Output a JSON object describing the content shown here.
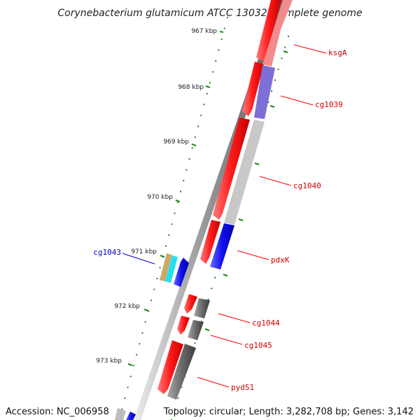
{
  "title": "Corynebacterium glutamicum ATCC 13032, complete genome",
  "ticks": [
    {
      "label": "967 kbp"
    },
    {
      "label": "968 kbp"
    },
    {
      "label": "969 kbp"
    },
    {
      "label": "970 kbp"
    },
    {
      "label": "971 kbp"
    },
    {
      "label": "972 kbp"
    },
    {
      "label": "973 kbp"
    }
  ],
  "genes": [
    {
      "label": "ksgA",
      "label_color": "#d40000",
      "track_color": "#f28b8b"
    },
    {
      "label": "cg1039",
      "label_color": "#d40000",
      "track_color": "#7d6fd6"
    },
    {
      "label": "cg1040",
      "label_color": "#d40000",
      "track_color": "#c8c8c8"
    },
    {
      "label": "pdxK",
      "label_color": "#d40000",
      "track_color": "#1a1aee"
    },
    {
      "label": "cg1043",
      "label_color": "#0000cc",
      "track_color": "#1a1aee"
    },
    {
      "label": "cg1044",
      "label_color": "#d40000",
      "track_color": "#666666"
    },
    {
      "label": "cg1045",
      "label_color": "#d40000",
      "track_color": "#666666"
    },
    {
      "label": "pydS1",
      "label_color": "#d40000",
      "track_color": "#666666"
    }
  ],
  "colors": {
    "cds": "#ff1a1a",
    "backbone": "#8a8a8a",
    "tick": "#1f8a1f",
    "label_line_red": "#ff0000",
    "label_line_blue": "#0000cc"
  },
  "footer": {
    "accession": "Accession: NC_006958",
    "topology": "Topology: circular; Length: 3,282,708 bp; Genes: 3,142"
  }
}
